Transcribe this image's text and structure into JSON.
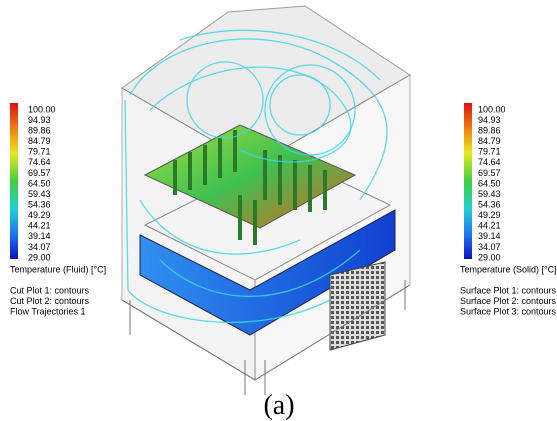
{
  "left_legend": {
    "ticks": [
      "100.00",
      "94.93",
      "89.86",
      "84.79",
      "79.71",
      "74.64",
      "69.57",
      "64.50",
      "59.43",
      "54.36",
      "49.29",
      "44.21",
      "39.14",
      "34.07",
      "29.00"
    ],
    "title": "Temperature (Fluid) [°C]",
    "items": [
      "Cut Plot 1: contours",
      "Cut Plot 2: contours",
      "Flow Trajectories 1"
    ]
  },
  "right_legend": {
    "ticks": [
      "100.00",
      "94.93",
      "89.86",
      "84.79",
      "79.71",
      "74.64",
      "69.57",
      "64.50",
      "59.43",
      "54.36",
      "49.29",
      "44.21",
      "39.14",
      "34.07",
      "29.00"
    ],
    "title": "Temperature (Solid) [°C]",
    "items": [
      "Surface Plot 1: contours",
      "Surface Plot 2: contours",
      "Surface Plot 3: contours"
    ]
  },
  "caption": "(a)"
}
